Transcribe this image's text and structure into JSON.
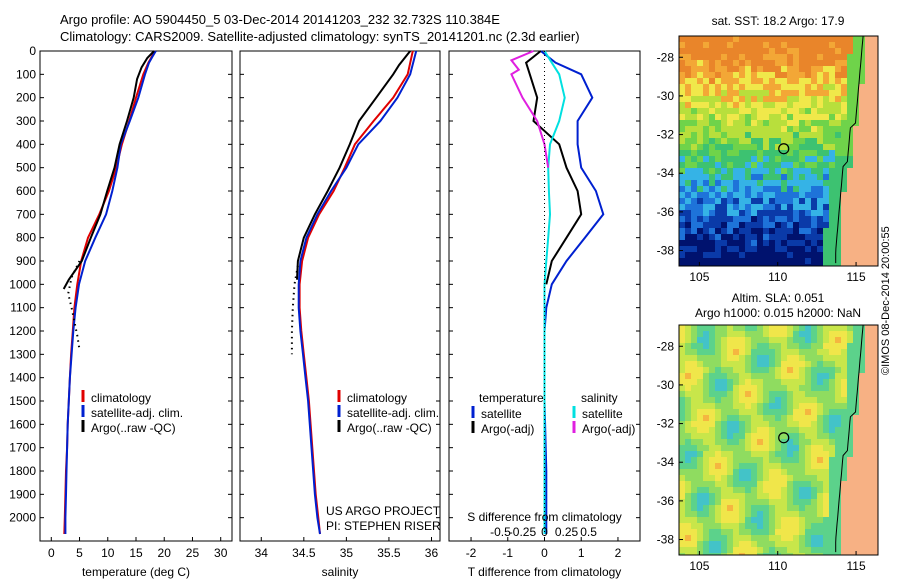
{
  "header": {
    "line1": "Argo profile: AO 5904450_5 03-Dec-2014 20141203_232 32.732S 110.384E",
    "line2": "Climatology: CARS2009. Satellite-adjusted climatology: synTS_20141201.nc (2.3d earlier)"
  },
  "depth_ticks": [
    0,
    100,
    200,
    300,
    400,
    500,
    600,
    700,
    800,
    900,
    1000,
    1100,
    1200,
    1300,
    1400,
    1500,
    1600,
    1700,
    1800,
    1900,
    2000
  ],
  "colors": {
    "climatology": "#e00000",
    "satellite": "#0020d0",
    "argo": "#000000",
    "sal_satellite": "#00e0e0",
    "sal_argo": "#e020e0"
  },
  "chart_data": [
    {
      "id": "temperature",
      "type": "line",
      "xlabel": "temperature (deg C)",
      "xticks": [
        0,
        5,
        10,
        15,
        20,
        25,
        30
      ],
      "xlim": [
        -2,
        32
      ],
      "ylim": [
        2100,
        0
      ],
      "legend": [
        "climatology",
        "satellite-adj. clim.",
        "Argo(..raw -QC)"
      ],
      "series": [
        {
          "name": "climatology",
          "color": "#e00000",
          "points": [
            [
              18.3,
              0
            ],
            [
              17.8,
              25
            ],
            [
              17.2,
              50
            ],
            [
              16.3,
              100
            ],
            [
              15.0,
              200
            ],
            [
              13.8,
              300
            ],
            [
              12.5,
              400
            ],
            [
              11.5,
              500
            ],
            [
              10.2,
              600
            ],
            [
              8.5,
              700
            ],
            [
              6.5,
              800
            ],
            [
              5.3,
              900
            ],
            [
              4.6,
              1000
            ],
            [
              4.1,
              1100
            ],
            [
              3.8,
              1200
            ],
            [
              3.5,
              1300
            ],
            [
              3.3,
              1400
            ],
            [
              3.1,
              1500
            ],
            [
              2.9,
              1600
            ],
            [
              2.8,
              1700
            ],
            [
              2.6,
              1800
            ],
            [
              2.5,
              1900
            ],
            [
              2.4,
              2000
            ],
            [
              2.3,
              2070
            ]
          ]
        },
        {
          "name": "satellite-adj. clim.",
          "color": "#0020d0",
          "points": [
            [
              18.5,
              0
            ],
            [
              17.9,
              25
            ],
            [
              17.3,
              50
            ],
            [
              16.6,
              100
            ],
            [
              15.4,
              200
            ],
            [
              13.9,
              300
            ],
            [
              12.3,
              400
            ],
            [
              11.7,
              500
            ],
            [
              10.8,
              600
            ],
            [
              9.7,
              700
            ],
            [
              7.8,
              800
            ],
            [
              6.0,
              900
            ],
            [
              4.9,
              1000
            ],
            [
              4.3,
              1100
            ],
            [
              3.9,
              1200
            ],
            [
              3.6,
              1300
            ],
            [
              3.3,
              1400
            ],
            [
              3.1,
              1500
            ],
            [
              2.9,
              1600
            ],
            [
              2.8,
              1700
            ],
            [
              2.7,
              1800
            ],
            [
              2.6,
              1900
            ],
            [
              2.5,
              2000
            ],
            [
              2.5,
              2070
            ]
          ]
        },
        {
          "name": "Argo",
          "color": "#000000",
          "points": [
            [
              18.2,
              0
            ],
            [
              17.0,
              30
            ],
            [
              16.0,
              70
            ],
            [
              15.2,
              120
            ],
            [
              14.6,
              200
            ],
            [
              13.4,
              300
            ],
            [
              12.1,
              400
            ],
            [
              11.2,
              500
            ],
            [
              9.9,
              600
            ],
            [
              8.7,
              700
            ],
            [
              7.0,
              800
            ],
            [
              5.4,
              900
            ],
            [
              3.1,
              980
            ],
            [
              2.2,
              1020
            ]
          ]
        },
        {
          "name": "Argo-dotted",
          "color": "#000000",
          "dotted": true,
          "points": [
            [
              5.0,
              900
            ],
            [
              3.6,
              970
            ],
            [
              3.0,
              1040
            ],
            [
              3.6,
              1100
            ],
            [
              4.1,
              1160
            ],
            [
              4.6,
              1220
            ],
            [
              5.0,
              1280
            ]
          ]
        }
      ]
    },
    {
      "id": "salinity",
      "type": "line",
      "xlabel": "salinity",
      "xticks": [
        34,
        34.5,
        35,
        35.5,
        36
      ],
      "xlim": [
        33.75,
        36.1
      ],
      "ylim": [
        2100,
        0
      ],
      "legend": [
        "climatology",
        "satellite-adj. clim.",
        "Argo(..raw -QC)"
      ],
      "annotation": [
        "US ARGO PROJECT",
        "PI: STEPHEN RISER"
      ],
      "series": [
        {
          "name": "climatology",
          "color": "#e00000",
          "points": [
            [
              35.78,
              0
            ],
            [
              35.72,
              100
            ],
            [
              35.55,
              200
            ],
            [
              35.32,
              300
            ],
            [
              35.1,
              400
            ],
            [
              34.98,
              500
            ],
            [
              34.85,
              600
            ],
            [
              34.68,
              700
            ],
            [
              34.55,
              800
            ],
            [
              34.48,
              900
            ],
            [
              34.45,
              1000
            ],
            [
              34.45,
              1100
            ],
            [
              34.47,
              1200
            ],
            [
              34.5,
              1300
            ],
            [
              34.53,
              1400
            ],
            [
              34.56,
              1500
            ],
            [
              34.58,
              1600
            ],
            [
              34.6,
              1700
            ],
            [
              34.62,
              1800
            ],
            [
              34.64,
              1900
            ],
            [
              34.67,
              2000
            ],
            [
              34.69,
              2070
            ]
          ]
        },
        {
          "name": "satellite-adj. clim.",
          "color": "#0020d0",
          "points": [
            [
              35.82,
              0
            ],
            [
              35.75,
              100
            ],
            [
              35.6,
              200
            ],
            [
              35.4,
              300
            ],
            [
              35.14,
              400
            ],
            [
              35.0,
              500
            ],
            [
              34.82,
              600
            ],
            [
              34.66,
              700
            ],
            [
              34.53,
              800
            ],
            [
              34.46,
              900
            ],
            [
              34.44,
              1000
            ],
            [
              34.44,
              1100
            ],
            [
              34.46,
              1200
            ],
            [
              34.49,
              1300
            ],
            [
              34.52,
              1400
            ],
            [
              34.55,
              1500
            ],
            [
              34.57,
              1600
            ],
            [
              34.59,
              1700
            ],
            [
              34.61,
              1800
            ],
            [
              34.63,
              1900
            ],
            [
              34.66,
              2000
            ],
            [
              34.69,
              2070
            ]
          ]
        },
        {
          "name": "Argo",
          "color": "#000000",
          "points": [
            [
              35.75,
              0
            ],
            [
              35.62,
              60
            ],
            [
              35.55,
              100
            ],
            [
              35.35,
              200
            ],
            [
              35.15,
              300
            ],
            [
              35.04,
              400
            ],
            [
              34.92,
              500
            ],
            [
              34.78,
              600
            ],
            [
              34.63,
              700
            ],
            [
              34.5,
              800
            ],
            [
              34.43,
              900
            ],
            [
              34.42,
              980
            ]
          ]
        },
        {
          "name": "Argo-dotted",
          "color": "#000000",
          "dotted": true,
          "points": [
            [
              34.43,
              920
            ],
            [
              34.39,
              1000
            ],
            [
              34.37,
              1100
            ],
            [
              34.36,
              1200
            ],
            [
              34.36,
              1300
            ]
          ]
        }
      ]
    },
    {
      "id": "differences",
      "type": "line",
      "xlabel": "T difference from climatology",
      "xlabel_top": "S difference from climatology",
      "xticks": [
        -2,
        -1,
        0,
        1,
        2
      ],
      "xticks_top": [
        "-0.5",
        "-0.25",
        "0",
        "0.25",
        "0.5"
      ],
      "xlim": [
        -2.6,
        2.6
      ],
      "ylim": [
        2100,
        0
      ],
      "legend_temperature": {
        "title": "temperature",
        "items": [
          "satellite",
          "Argo(-adj)"
        ]
      },
      "legend_salinity": {
        "title": "salinity",
        "items": [
          "satellite",
          "Argo(-adj)"
        ]
      },
      "series": [
        {
          "name": "temperature satellite",
          "color": "#0020d0",
          "points": [
            [
              -0.1,
              0
            ],
            [
              0.3,
              50
            ],
            [
              1.0,
              100
            ],
            [
              1.3,
              200
            ],
            [
              0.9,
              300
            ],
            [
              0.9,
              400
            ],
            [
              1.0,
              500
            ],
            [
              1.4,
              600
            ],
            [
              1.6,
              700
            ],
            [
              1.1,
              800
            ],
            [
              0.6,
              900
            ],
            [
              0.2,
              1000
            ],
            [
              0.05,
              1100
            ],
            [
              0.0,
              1200
            ],
            [
              0.0,
              1500
            ],
            [
              0.05,
              1800
            ],
            [
              0.05,
              2070
            ]
          ]
        },
        {
          "name": "temperature Argo(-adj)",
          "color": "#000000",
          "points": [
            [
              -0.1,
              0
            ],
            [
              -0.5,
              50
            ],
            [
              -0.4,
              100
            ],
            [
              -0.2,
              200
            ],
            [
              -0.3,
              300
            ],
            [
              0.4,
              400
            ],
            [
              0.6,
              500
            ],
            [
              0.9,
              600
            ],
            [
              1.0,
              700
            ],
            [
              0.6,
              800
            ],
            [
              0.2,
              900
            ],
            [
              0.05,
              1000
            ]
          ]
        },
        {
          "name": "salinity satellite",
          "color": "#00e0e0",
          "points": [
            [
              0.0,
              0
            ],
            [
              0.2,
              50
            ],
            [
              0.4,
              100
            ],
            [
              0.55,
              200
            ],
            [
              0.4,
              300
            ],
            [
              0.15,
              400
            ],
            [
              0.1,
              500
            ],
            [
              0.12,
              600
            ],
            [
              0.15,
              700
            ],
            [
              0.1,
              800
            ],
            [
              0.05,
              900
            ],
            [
              0.0,
              1000
            ],
            [
              0.0,
              1200
            ],
            [
              0.0,
              1500
            ],
            [
              0.0,
              1800
            ],
            [
              0.0,
              2070
            ]
          ]
        },
        {
          "name": "salinity Argo(-adj)",
          "color": "#e020e0",
          "points": [
            [
              -0.3,
              0
            ],
            [
              -0.9,
              40
            ],
            [
              -0.7,
              80
            ],
            [
              -0.9,
              100
            ],
            [
              -0.6,
              200
            ],
            [
              -0.2,
              300
            ],
            [
              0.0,
              400
            ],
            [
              0.1,
              500
            ]
          ]
        }
      ]
    },
    {
      "id": "sst-map",
      "type": "heatmap",
      "title": "sat. SST: 18.2  Argo: 17.9",
      "xticks": [
        105,
        110,
        115
      ],
      "yticks": [
        -28,
        -30,
        -32,
        -34,
        -36,
        -38
      ],
      "xlim": [
        103.7,
        116.4
      ],
      "ylim": [
        -38.8,
        -26.9
      ],
      "marker": [
        110.384,
        -32.732
      ]
    },
    {
      "id": "sla-map",
      "type": "heatmap",
      "title": "Altim. SLA: 0.051",
      "subtitle": "Argo h1000: 0.015 h2000: NaN",
      "xticks": [
        105,
        110,
        115
      ],
      "yticks": [
        -28,
        -30,
        -32,
        -34,
        -36,
        -38
      ],
      "xlim": [
        103.7,
        116.4
      ],
      "ylim": [
        -38.8,
        -26.9
      ],
      "marker": [
        110.384,
        -32.732
      ]
    }
  ],
  "stamp": "©IMOS 08-Dec-2014 20:00:55"
}
